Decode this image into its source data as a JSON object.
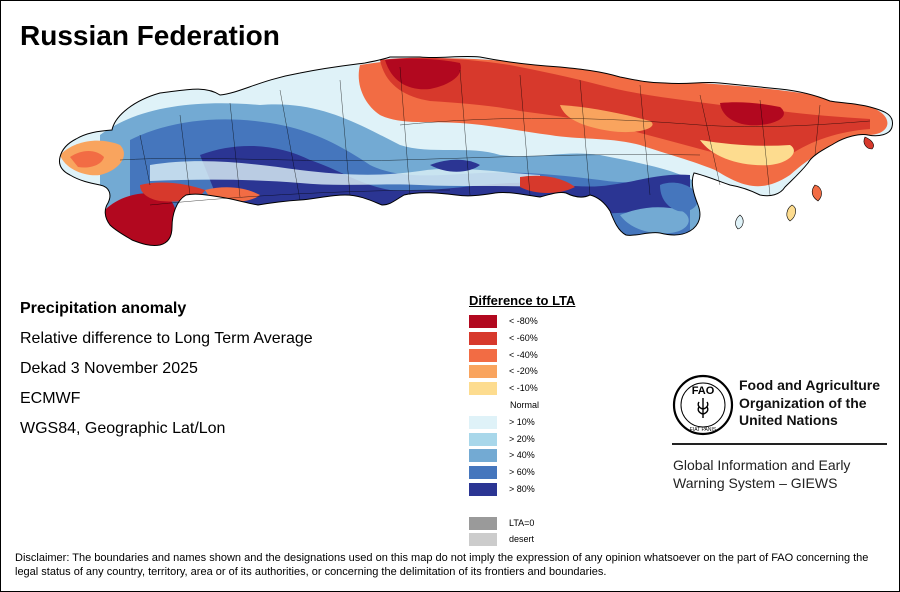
{
  "title": "Russian Federation",
  "map_info": {
    "heading": "Precipitation anomaly",
    "subtitle": "Relative difference to Long Term Average",
    "period": "Dekad 3 November 2025",
    "source": "ECMWF",
    "projection": "WGS84, Geographic Lat/Lon"
  },
  "legend": {
    "title": "Difference to LTA",
    "classes": [
      {
        "label": "< -80%",
        "color": "#b2081f"
      },
      {
        "label": "< -60%",
        "color": "#d7392c"
      },
      {
        "label": "< -40%",
        "color": "#f26c44"
      },
      {
        "label": "< -20%",
        "color": "#f9a45e"
      },
      {
        "label": "< -10%",
        "color": "#fddc8f"
      },
      {
        "label": "Normal",
        "color": ""
      },
      {
        "label": "> 10%",
        "color": "#dff2f8"
      },
      {
        "label": "> 20%",
        "color": "#a8d7ea"
      },
      {
        "label": "> 40%",
        "color": "#73aad3"
      },
      {
        "label": "> 60%",
        "color": "#4576bd"
      },
      {
        "label": "> 80%",
        "color": "#2b3593"
      },
      {
        "label": "",
        "color": ""
      },
      {
        "label": "LTA=0",
        "color": "#9a9a9a"
      },
      {
        "label": "desert",
        "color": "#cccccc"
      }
    ]
  },
  "fao": {
    "emblem_text": "FAO",
    "motto": "FIAT PANIS",
    "name_line1": "Food and Agriculture",
    "name_line2": "Organization of the",
    "name_line3": "United Nations",
    "giews_line1": "Global Information and Early",
    "giews_line2": "Warning System – GIEWS"
  },
  "disclaimer": "Disclaimer: The boundaries and names shown and the designations used on this map do not imply the expression of any opinion whatsoever on the part of FAO concerning the legal status of any country, territory, area or of its authorities, or concerning the delimitation of its frontiers and boundaries."
}
